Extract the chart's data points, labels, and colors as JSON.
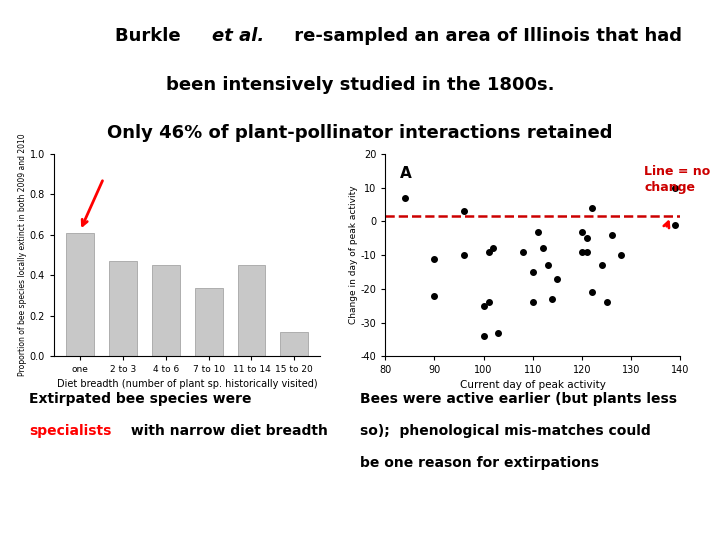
{
  "bg_color": "#ffffff",
  "bar_categories": [
    "one",
    "2 to 3",
    "4 to 6",
    "7 to 10",
    "11 to 14",
    "15 to 20"
  ],
  "bar_values": [
    0.61,
    0.47,
    0.45,
    0.34,
    0.45,
    0.12
  ],
  "bar_color": "#c8c8c8",
  "bar_edge_color": "#999999",
  "bar_xlabel": "Diet breadth (number of plant sp. historically visited)",
  "bar_ylabel": "Proportion of bee species locally extinct in both 2009 and 2010",
  "bar_ylim": [
    0,
    1.0
  ],
  "bar_yticks": [
    0.0,
    0.2,
    0.4,
    0.6,
    0.8,
    1.0
  ],
  "scatter_x": [
    84,
    90,
    90,
    96,
    96,
    100,
    100,
    101,
    101,
    102,
    103,
    108,
    110,
    110,
    111,
    112,
    113,
    114,
    115,
    120,
    120,
    121,
    121,
    122,
    122,
    124,
    125,
    126,
    128,
    139,
    139
  ],
  "scatter_y": [
    7,
    -11,
    -22,
    3,
    -10,
    -25,
    -34,
    -9,
    -24,
    -8,
    -33,
    -9,
    -15,
    -24,
    -3,
    -8,
    -13,
    -23,
    -17,
    -3,
    -9,
    -5,
    -9,
    4,
    -21,
    -13,
    -24,
    -4,
    -10,
    10,
    -1
  ],
  "scatter_color": "#000000",
  "scatter_xlabel": "Current day of peak activity",
  "scatter_ylabel": "Change in day of peak activity",
  "scatter_xlim": [
    80,
    140
  ],
  "scatter_ylim": [
    -40,
    20
  ],
  "scatter_yticks": [
    -40,
    -30,
    -20,
    -10,
    0,
    10,
    20
  ],
  "scatter_xticks": [
    80,
    90,
    100,
    110,
    120,
    130,
    140
  ],
  "scatter_label_A": "A",
  "dashed_line_y": 1.5,
  "dashed_line_color": "#cc0000",
  "annotation_text": "Line = no\nchange",
  "annotation_color": "#cc0000",
  "caption_left_line1": "Extirpated bee species were",
  "caption_left_red": "specialists",
  "caption_left_rest": " with narrow diet breadth",
  "caption_right_line1": "Bees were active earlier (but plants less",
  "caption_right_line2": "so);  phenological mis-matches could",
  "caption_right_line3": "be one reason for extirpations"
}
